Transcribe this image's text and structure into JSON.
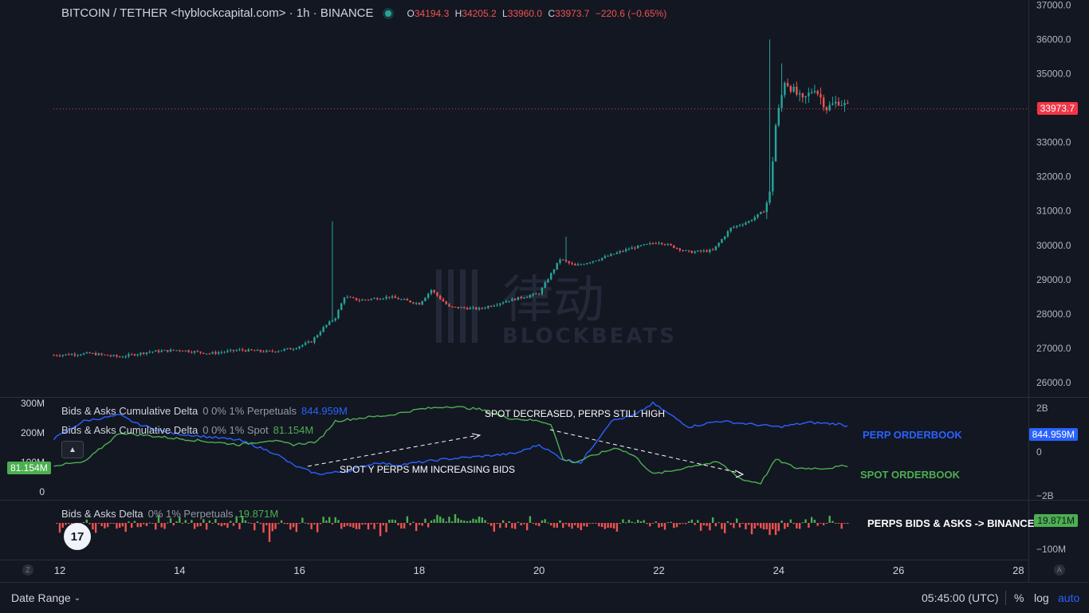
{
  "header": {
    "symbol": "BITCOIN / TETHER <hyblockcapital.com> · 1h · BINANCE",
    "ohlc": {
      "o_key": "O",
      "o": "34194.3",
      "h_key": "H",
      "h": "34205.2",
      "l_key": "L",
      "l": "33960.0",
      "c_key": "C",
      "c": "33973.7",
      "change": "−220.6 (−0.65%)"
    }
  },
  "last_price_tag": "33973.7",
  "indicators": {
    "perp": {
      "title": "Bids & Asks Cumulative Delta",
      "params": "0 0% 1% Perpetuals",
      "value": "844.959M"
    },
    "spot": {
      "title": "Bids & Asks Cumulative Delta",
      "params": "0 0% 1% Spot",
      "value": "81.154M"
    },
    "delta": {
      "title": "Bids & Asks Delta",
      "params": "0% 1% Perpetuals",
      "value": "19.871M"
    }
  },
  "tags": {
    "perp_value": "844.959M",
    "spot_value": "81.154M",
    "delta_value": "19.871M"
  },
  "annotations": {
    "spot_decreased": "SPOT DECREASED, PERPS STILL HIGH",
    "increasing_bids": "SPOT Y PERPS MM INCREASING BIDS",
    "perp_orderbook": "PERP ORDERBOOK",
    "spot_orderbook": "SPOT ORDERBOOK",
    "perps_binance": "PERPS BIDS & ASKS -> BINANCE"
  },
  "watermark": {
    "brand": "BLOCKBEATS",
    "cn": "律动"
  },
  "bottom_bar": {
    "date_range": "Date Range",
    "clock": "05:45:00 (UTC)",
    "percent": "%",
    "log": "log",
    "auto": "auto"
  },
  "corner_buttons": {
    "left": "Z",
    "right": "A"
  },
  "tv_logo": "17",
  "colors": {
    "up": "#26a69a",
    "down": "#ef5350",
    "perp": "#2962ff",
    "spot": "#4caf50",
    "background": "#131722",
    "price_tag": "#f23645"
  },
  "chart_data": [
    {
      "type": "candlestick",
      "title": "BITCOIN / TETHER · 1h · BINANCE",
      "x_ticks": [
        "12",
        "14",
        "16",
        "18",
        "20",
        "22",
        "24",
        "26",
        "28"
      ],
      "y_ticks": [
        "26000.0",
        "27000.0",
        "28000.0",
        "29000.0",
        "30000.0",
        "31000.0",
        "32000.0",
        "33000.0",
        "34000.0",
        "35000.0",
        "36000.0",
        "37000.0"
      ],
      "ylim": [
        25600,
        37000
      ],
      "xlim": [
        11.9,
        28.1
      ],
      "last_price": 33973.7,
      "path_day": [
        11.9,
        12.5,
        13.0,
        13.5,
        14.0,
        14.5,
        15.0,
        15.5,
        15.9,
        16.2,
        16.4,
        16.6,
        16.75,
        17.0,
        17.5,
        18.0,
        18.2,
        18.5,
        19.0,
        19.5,
        20.0,
        20.35,
        20.6,
        21.0,
        21.5,
        22.0,
        22.5,
        22.9,
        23.2,
        23.5,
        23.75,
        23.85,
        23.95,
        24.1,
        24.4,
        24.6,
        24.8,
        25.0,
        25.2
      ],
      "path_price": [
        26800,
        26850,
        26750,
        26900,
        26950,
        26850,
        26950,
        26900,
        27000,
        27200,
        27600,
        27900,
        28500,
        28400,
        28500,
        28300,
        28700,
        28200,
        28150,
        28400,
        28600,
        29600,
        29400,
        29600,
        29900,
        30100,
        29800,
        29850,
        30500,
        30700,
        31000,
        31500,
        33500,
        34800,
        34200,
        34600,
        34000,
        34200,
        33974
      ],
      "spikes": [
        {
          "day": 16.55,
          "high": 30700
        },
        {
          "day": 23.85,
          "high": 36000
        },
        {
          "day": 24.05,
          "high": 35300
        },
        {
          "day": 20.45,
          "high": 30250
        }
      ]
    },
    {
      "type": "line",
      "title": "Bids & Asks Cumulative Delta",
      "y_ticks_left": [
        "0",
        "100M",
        "200M",
        "300M"
      ],
      "y_ticks_right": [
        "2B",
        "0",
        "−2B"
      ],
      "series": [
        {
          "name": "Perpetuals",
          "x": [
            11.9,
            12.4,
            13.0,
            13.3,
            13.8,
            14.3,
            15.0,
            15.6,
            15.9,
            16.3,
            16.8,
            17.3,
            17.6,
            18.0,
            18.4,
            19.0,
            19.6,
            20.0,
            20.4,
            20.7,
            21.2,
            21.6,
            21.9,
            22.2,
            22.5,
            23.0,
            23.5,
            24.0,
            24.5,
            25.0,
            25.2
          ],
          "values": [
            180,
            240,
            260,
            230,
            200,
            190,
            175,
            130,
            90,
            60,
            70,
            100,
            90,
            100,
            110,
            120,
            130,
            160,
            110,
            100,
            240,
            260,
            300,
            260,
            220,
            240,
            230,
            220,
            235,
            230,
            220
          ]
        },
        {
          "name": "Spot",
          "x": [
            11.9,
            12.4,
            13.0,
            13.5,
            14.0,
            14.5,
            15.0,
            15.5,
            15.9,
            16.3,
            16.6,
            17.0,
            17.5,
            18.0,
            18.5,
            19.0,
            19.5,
            20.0,
            20.2,
            20.4,
            20.6,
            21.0,
            21.3,
            21.6,
            21.9,
            22.2,
            22.6,
            23.0,
            23.4,
            23.7,
            23.95,
            24.3,
            24.8,
            25.2
          ],
          "values": [
            90,
            100,
            200,
            190,
            180,
            170,
            160,
            175,
            160,
            170,
            240,
            250,
            260,
            280,
            290,
            280,
            250,
            240,
            230,
            110,
            100,
            130,
            150,
            120,
            60,
            70,
            90,
            100,
            40,
            30,
            110,
            80,
            80,
            90
          ]
        }
      ]
    },
    {
      "type": "bar",
      "title": "Bids & Asks Delta",
      "series_name": "Perpetuals",
      "y_ticks": [
        "−100M"
      ],
      "bars_start_day": 11.95,
      "bars_end_day": 25.2,
      "last_value": 19.871
    }
  ]
}
